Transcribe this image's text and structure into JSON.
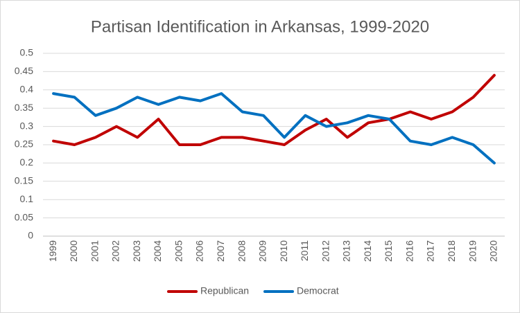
{
  "chart_data": {
    "type": "line",
    "title": "Partisan Identification in Arkansas, 1999-2020",
    "categories": [
      "1999",
      "2000",
      "2001",
      "2002",
      "2003",
      "2004",
      "2005",
      "2006",
      "2007",
      "2008",
      "2009",
      "2010",
      "2011",
      "2012",
      "2013",
      "2014",
      "2015",
      "2016",
      "2017",
      "2018",
      "2019",
      "2020"
    ],
    "series": [
      {
        "name": "Republican",
        "color": "#c00000",
        "values": [
          0.26,
          0.25,
          0.27,
          0.3,
          0.27,
          0.32,
          0.25,
          0.25,
          0.27,
          0.27,
          0.26,
          0.25,
          0.29,
          0.32,
          0.27,
          0.31,
          0.32,
          0.34,
          0.32,
          0.34,
          0.38,
          0.44
        ]
      },
      {
        "name": "Democrat",
        "color": "#0070c0",
        "values": [
          0.39,
          0.38,
          0.33,
          0.35,
          0.38,
          0.36,
          0.38,
          0.37,
          0.39,
          0.34,
          0.33,
          0.27,
          0.33,
          0.3,
          0.31,
          0.33,
          0.32,
          0.26,
          0.25,
          0.27,
          0.25,
          0.2
        ]
      }
    ],
    "ylim": [
      0,
      0.5
    ],
    "yticks": [
      0,
      0.05,
      0.1,
      0.15,
      0.2,
      0.25,
      0.3,
      0.35,
      0.4,
      0.45,
      0.5
    ],
    "grid": true,
    "legend": "bottom"
  }
}
